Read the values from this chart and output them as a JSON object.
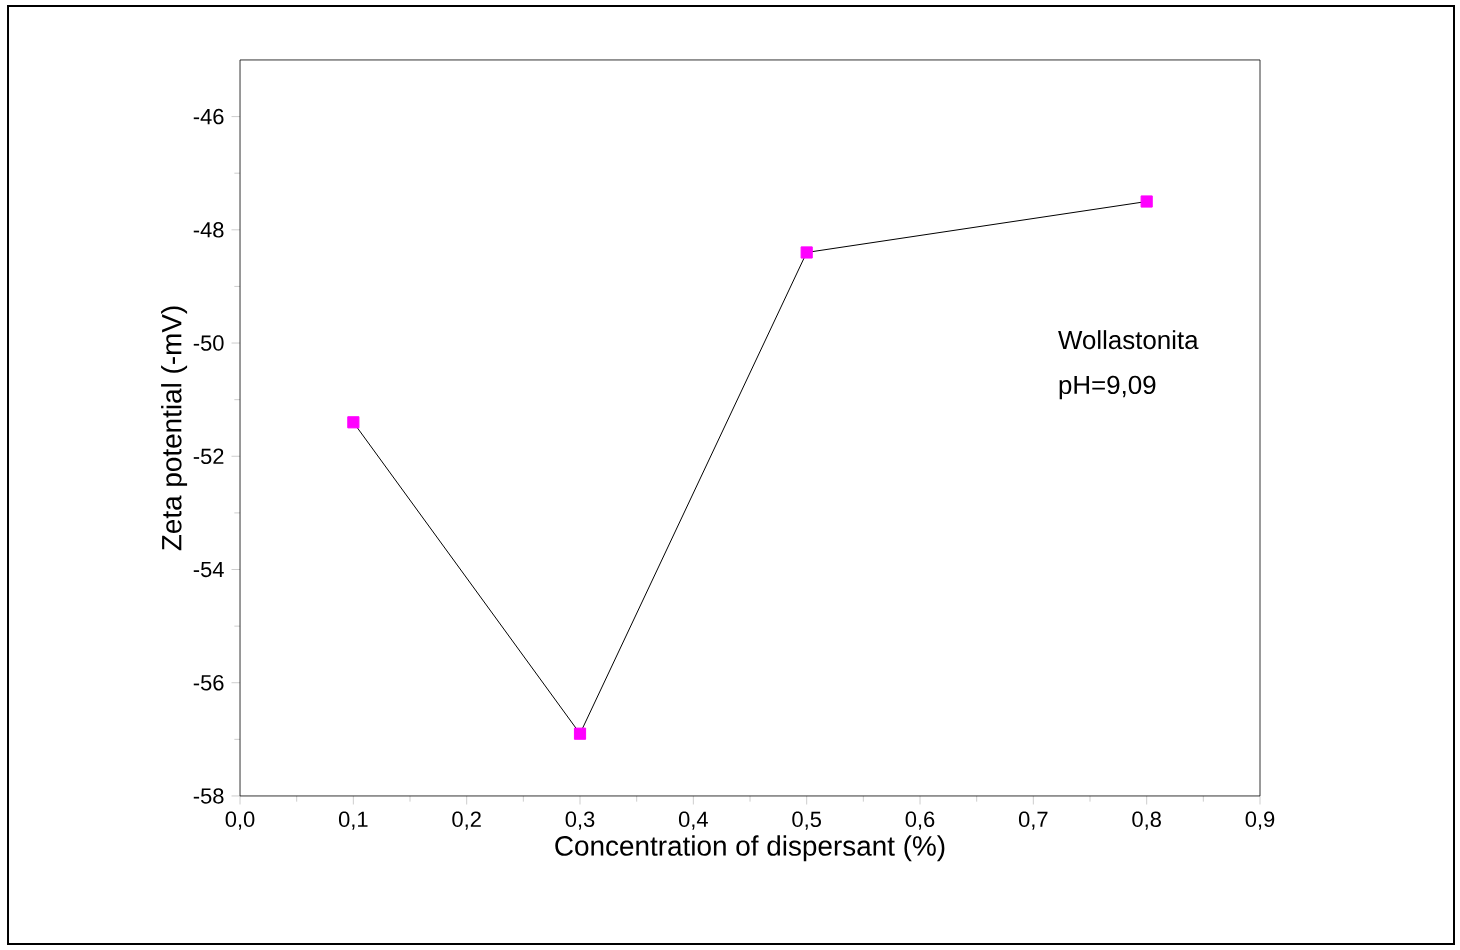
{
  "chart_data": {
    "type": "line",
    "xlabel": "Concentration of dispersant (%)",
    "ylabel": "Zeta potential (-mV)",
    "x": [
      0.1,
      0.3,
      0.5,
      0.8
    ],
    "series": [
      {
        "color": "#ff00ff",
        "values": [
          -51.4,
          -56.9,
          -48.4,
          -47.5
        ]
      }
    ],
    "xlim": [
      0,
      0.9
    ],
    "ylim": [
      -58,
      -45
    ],
    "xticks": [
      {
        "value": 0,
        "label": "0,0"
      },
      {
        "value": 0.1,
        "label": "0,1"
      },
      {
        "value": 0.2,
        "label": "0,2"
      },
      {
        "value": 0.3,
        "label": "0,3"
      },
      {
        "value": 0.4,
        "label": "0,4"
      },
      {
        "value": 0.5,
        "label": "0,5"
      },
      {
        "value": 0.6,
        "label": "0,6"
      },
      {
        "value": 0.7,
        "label": "0,7"
      },
      {
        "value": 0.8,
        "label": "0,8"
      },
      {
        "value": 0.9,
        "label": "0,9"
      }
    ],
    "yticks": [
      -58,
      -56,
      -54,
      -52,
      -50,
      -48,
      -46
    ],
    "annotations": [
      "Wollastonita",
      "pH=9,09"
    ],
    "marker": "square",
    "line_style": "solid"
  }
}
